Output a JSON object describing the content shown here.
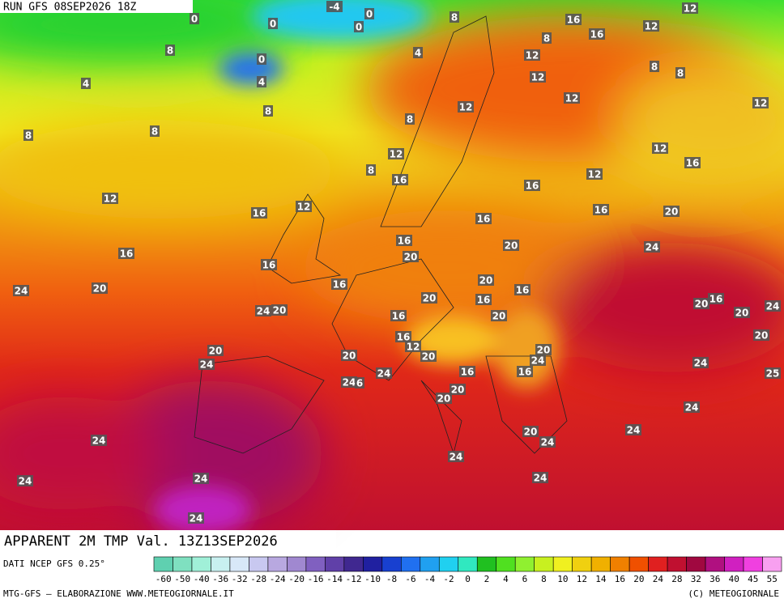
{
  "header": {
    "run": "RUN GFS 08SEP2026 18Z"
  },
  "title": "APPARENT 2M TMP Val. 13Z13SEP2026",
  "data_source": "DATI NCEP GFS 0.25°",
  "footer": {
    "credit": "MTG-GFS — ELABORAZIONE WWW.METEOGIORNALE.IT",
    "copyright": "(C) METEOGIORNALE"
  },
  "colorbar": {
    "labels": [
      "-60",
      "-50",
      "-40",
      "-36",
      "-32",
      "-28",
      "-24",
      "-20",
      "-16",
      "-14",
      "-12",
      "-10",
      "-8",
      "-6",
      "-4",
      "-2",
      "0",
      "2",
      "4",
      "6",
      "8",
      "10",
      "12",
      "14",
      "16",
      "20",
      "24",
      "28",
      "32",
      "36",
      "40",
      "45",
      "55"
    ],
    "colors": [
      "#5fd0b0",
      "#7fe0c0",
      "#a0f0d8",
      "#c8f0f0",
      "#d8e8f8",
      "#c8c8f0",
      "#b8a8e0",
      "#a088d0",
      "#8060c0",
      "#6040a8",
      "#402890",
      "#2020a0",
      "#1840d0",
      "#2070f0",
      "#20a0f0",
      "#20d0f0",
      "#30e8c0",
      "#20c020",
      "#50e020",
      "#90f030",
      "#c8f020",
      "#f0f020",
      "#f0d010",
      "#f0b000",
      "#f08000",
      "#f05000",
      "#e02020",
      "#c01030",
      "#a00840",
      "#b01080",
      "#d020c0",
      "#f040e0",
      "#f8a0f0"
    ]
  },
  "map_labels": [
    0,
    -4,
    0,
    0,
    0,
    8,
    16,
    12,
    12,
    16,
    8,
    8,
    0,
    4,
    12,
    12,
    8,
    8,
    4,
    4,
    12,
    12,
    8,
    12,
    8,
    8,
    8,
    12,
    12,
    16,
    8,
    16,
    12,
    16,
    12,
    12,
    16,
    16,
    20,
    16,
    16,
    20,
    24,
    16,
    20,
    16,
    16,
    20,
    16,
    24,
    20,
    20,
    16,
    20,
    16,
    24,
    20,
    24,
    20,
    16,
    20,
    20,
    16,
    12,
    20,
    20,
    20,
    20,
    24,
    24,
    24,
    16,
    16,
    24,
    24,
    6,
    25,
    20,
    20,
    24,
    20,
    24,
    24,
    24,
    24,
    24,
    24,
    24,
    24
  ]
}
